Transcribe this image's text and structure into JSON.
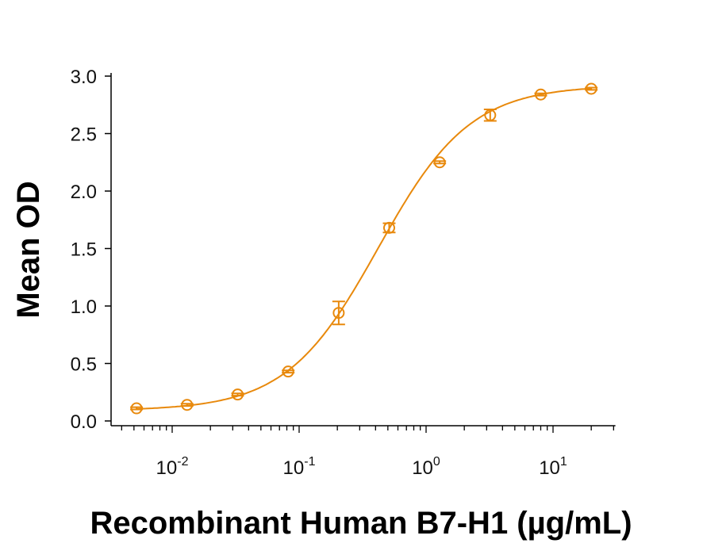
{
  "chart_data": {
    "type": "scatter",
    "title": "",
    "xlabel": "Recombinant Human B7-H1 (µg/mL)",
    "ylabel": "Mean OD",
    "x_scale": "log",
    "xlim": [
      0.0033,
      31
    ],
    "ylim": [
      0,
      3.0
    ],
    "grid": false,
    "color": "#E8890C",
    "y_ticks": [
      {
        "value": 0.0,
        "label": "0.0"
      },
      {
        "value": 0.5,
        "label": "0.5"
      },
      {
        "value": 1.0,
        "label": "1.0"
      },
      {
        "value": 1.5,
        "label": "1.5"
      },
      {
        "value": 2.0,
        "label": "2.0"
      },
      {
        "value": 2.5,
        "label": "2.5"
      },
      {
        "value": 3.0,
        "label": "3.0"
      }
    ],
    "x_ticks": [
      {
        "value": 0.01,
        "base": "10",
        "exp": "-2"
      },
      {
        "value": 0.1,
        "base": "10",
        "exp": "-1"
      },
      {
        "value": 1,
        "base": "10",
        "exp": "0"
      },
      {
        "value": 10,
        "base": "10",
        "exp": "1"
      }
    ],
    "points": [
      {
        "x": 0.00524,
        "y": 0.11,
        "err": 0.01
      },
      {
        "x": 0.0131,
        "y": 0.14,
        "err": 0.01
      },
      {
        "x": 0.0328,
        "y": 0.23,
        "err": 0.01
      },
      {
        "x": 0.082,
        "y": 0.43,
        "err": 0.01
      },
      {
        "x": 0.205,
        "y": 0.94,
        "err": 0.1
      },
      {
        "x": 0.512,
        "y": 1.68,
        "err": 0.04
      },
      {
        "x": 1.28,
        "y": 2.25,
        "err": 0.01
      },
      {
        "x": 3.2,
        "y": 2.66,
        "err": 0.05
      },
      {
        "x": 8.0,
        "y": 2.84,
        "err": 0.01
      },
      {
        "x": 20.0,
        "y": 2.89,
        "err": 0.01
      }
    ],
    "fit_curve": "four-parameter logistic"
  }
}
